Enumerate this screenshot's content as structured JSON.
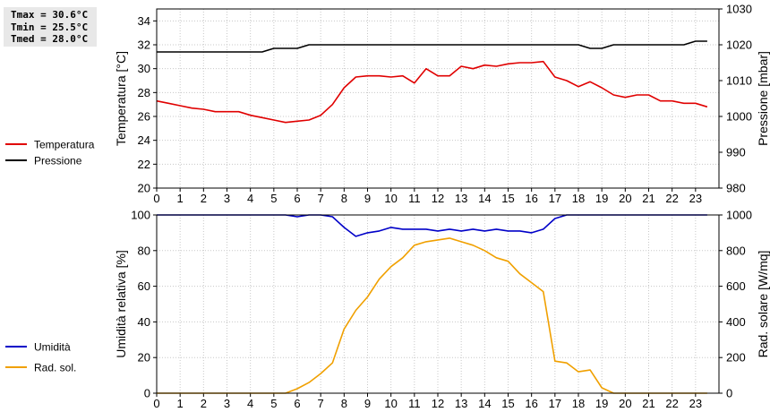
{
  "stats": {
    "tmax": "Tmax = 30.6°C",
    "tmin": "Tmin = 25.5°C",
    "tmed": "Tmed = 28.0°C"
  },
  "colors": {
    "temperature": "#e00000",
    "pressure": "#000000",
    "humidity": "#0000c8",
    "radiation": "#f0a000"
  },
  "chart_data": [
    {
      "type": "line",
      "title": "",
      "x_ticks": [
        "0",
        "1",
        "2",
        "3",
        "4",
        "5",
        "6",
        "7",
        "8",
        "9",
        "10",
        "11",
        "12",
        "13",
        "14",
        "15",
        "16",
        "17",
        "18",
        "19",
        "20",
        "21",
        "22",
        "23"
      ],
      "xlim": [
        0,
        24
      ],
      "ylabel_left": "Temperatura [°C]",
      "ylim_left": [
        20,
        35
      ],
      "yticks_left": [
        "20",
        "22",
        "24",
        "26",
        "28",
        "30",
        "32",
        "34"
      ],
      "ylabel_right": "Pressione [mbar]",
      "ylim_right": [
        980,
        1030
      ],
      "yticks_right": [
        "980",
        "990",
        "1000",
        "1010",
        "1020",
        "1030"
      ],
      "grid": true,
      "legend": [
        "Temperatura",
        "Pressione"
      ],
      "series": [
        {
          "name": "Temperatura",
          "axis": "left",
          "x": [
            0,
            0.5,
            1,
            1.5,
            2,
            2.5,
            3,
            3.5,
            4,
            4.5,
            5,
            5.5,
            6,
            6.5,
            7,
            7.5,
            8,
            8.5,
            9,
            9.5,
            10,
            10.5,
            11,
            11.5,
            12,
            12.5,
            13,
            13.5,
            14,
            14.5,
            15,
            15.5,
            16,
            16.5,
            17,
            17.5,
            18,
            18.5,
            19,
            19.5,
            20,
            20.5,
            21,
            21.5,
            22,
            22.5,
            23,
            23.5
          ],
          "values": [
            27.3,
            27.1,
            26.9,
            26.7,
            26.6,
            26.4,
            26.4,
            26.4,
            26.1,
            25.9,
            25.7,
            25.5,
            25.6,
            25.7,
            26.1,
            27.0,
            28.4,
            29.3,
            29.4,
            29.4,
            29.3,
            29.4,
            28.8,
            30.0,
            29.4,
            29.4,
            30.2,
            30.0,
            30.3,
            30.2,
            30.4,
            30.5,
            30.5,
            30.6,
            29.3,
            29.0,
            28.5,
            28.9,
            28.4,
            27.8,
            27.6,
            27.8,
            27.8,
            27.3,
            27.3,
            27.1,
            27.1,
            26.8
          ]
        },
        {
          "name": "Pressione",
          "axis": "right",
          "x": [
            0,
            4.5,
            5,
            6,
            6.5,
            17.5,
            18,
            18.5,
            19,
            19.5,
            22.5,
            23,
            23.5
          ],
          "values": [
            1018,
            1018,
            1019,
            1019,
            1020,
            1020,
            1020,
            1019,
            1019,
            1020,
            1020,
            1021,
            1021
          ]
        }
      ]
    },
    {
      "type": "line",
      "title": "",
      "x_ticks": [
        "0",
        "1",
        "2",
        "3",
        "4",
        "5",
        "6",
        "7",
        "8",
        "9",
        "10",
        "11",
        "12",
        "13",
        "14",
        "15",
        "16",
        "17",
        "18",
        "19",
        "20",
        "21",
        "22",
        "23"
      ],
      "xlim": [
        0,
        24
      ],
      "ylabel_left": "Umidità relativa [%]",
      "ylim_left": [
        0,
        100
      ],
      "yticks_left": [
        "0",
        "20",
        "40",
        "60",
        "80",
        "100"
      ],
      "ylabel_right": "Rad. solare [W/mq]",
      "ylim_right": [
        0,
        1000
      ],
      "yticks_right": [
        "0",
        "200",
        "400",
        "600",
        "800",
        "1000"
      ],
      "grid": true,
      "legend": [
        "Umidità",
        "Rad. sol."
      ],
      "series": [
        {
          "name": "Umidità",
          "axis": "left",
          "x": [
            0,
            5.5,
            6,
            6.5,
            7,
            7.5,
            8,
            8.5,
            9,
            9.5,
            10,
            10.5,
            11,
            11.5,
            12,
            12.5,
            13,
            13.5,
            14,
            14.5,
            15,
            15.5,
            16,
            16.5,
            17,
            17.5,
            18,
            18.5,
            19,
            19.5,
            20,
            20.5,
            21,
            21.5,
            22,
            22.5,
            23,
            23.5
          ],
          "values": [
            100,
            100,
            99,
            100,
            100,
            99,
            93,
            88,
            90,
            91,
            93,
            92,
            92,
            92,
            91,
            92,
            91,
            92,
            91,
            92,
            91,
            91,
            90,
            92,
            98,
            100,
            100,
            100,
            100,
            100,
            100,
            100,
            100,
            100,
            100,
            100,
            100,
            100
          ]
        },
        {
          "name": "Rad. sol.",
          "axis": "right",
          "x": [
            0,
            5.5,
            6,
            6.5,
            7,
            7.5,
            8,
            8.5,
            9,
            9.5,
            10,
            10.5,
            11,
            11.5,
            12,
            12.5,
            13,
            13.5,
            14,
            14.5,
            15,
            15.5,
            16,
            16.5,
            17,
            17.5,
            18,
            18.5,
            19,
            19.5,
            20,
            20.5,
            21,
            21.5,
            22,
            22.5,
            23,
            23.5
          ],
          "values": [
            0,
            0,
            25,
            60,
            110,
            170,
            360,
            465,
            540,
            640,
            710,
            760,
            830,
            850,
            860,
            870,
            850,
            830,
            800,
            760,
            740,
            670,
            620,
            570,
            180,
            170,
            120,
            130,
            30,
            0,
            0,
            0,
            0,
            0,
            0,
            0,
            0,
            0
          ]
        }
      ]
    }
  ]
}
